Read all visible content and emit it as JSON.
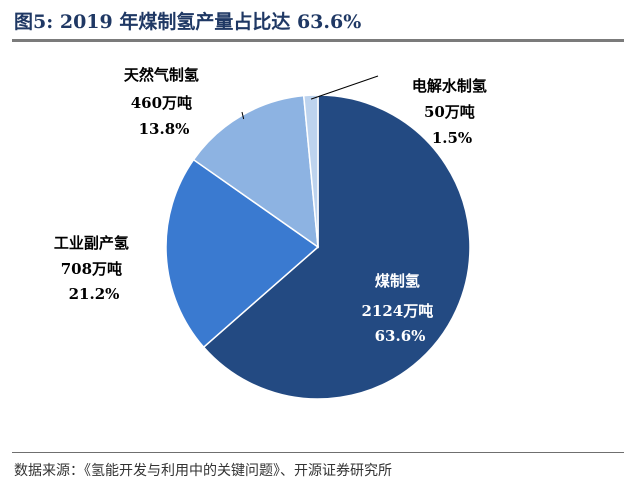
{
  "title": "图5:  2019 年煤制氢产量占比达 63.6%",
  "source": "数据来源：《氢能开发与利用中的关键问题》、开源证券研究所",
  "colors": {
    "title": "#1f3864",
    "slices": [
      "#234a82",
      "#3a7ad0",
      "#8db3e2",
      "#bdd3ee"
    ],
    "outside_label": "#000000",
    "inside_label": "#ffffff"
  },
  "chart_data": {
    "type": "pie",
    "title": "",
    "slices": [
      {
        "name": "煤制氢",
        "value": 2124,
        "value_label": "2124万吨",
        "percent": 63.6,
        "percent_label": "63.6%"
      },
      {
        "name": "工业副产氢",
        "value": 708,
        "value_label": "708万吨",
        "percent": 21.2,
        "percent_label": "21.2%"
      },
      {
        "name": "天然气制氢",
        "value": 460,
        "value_label": "460万吨",
        "percent": 13.8,
        "percent_label": "13.8%"
      },
      {
        "name": "电解水制氢",
        "value": 50,
        "value_label": "50万吨",
        "percent": 1.5,
        "percent_label": "1.5%"
      }
    ],
    "start": "12 o'clock",
    "direction": "clockwise"
  }
}
